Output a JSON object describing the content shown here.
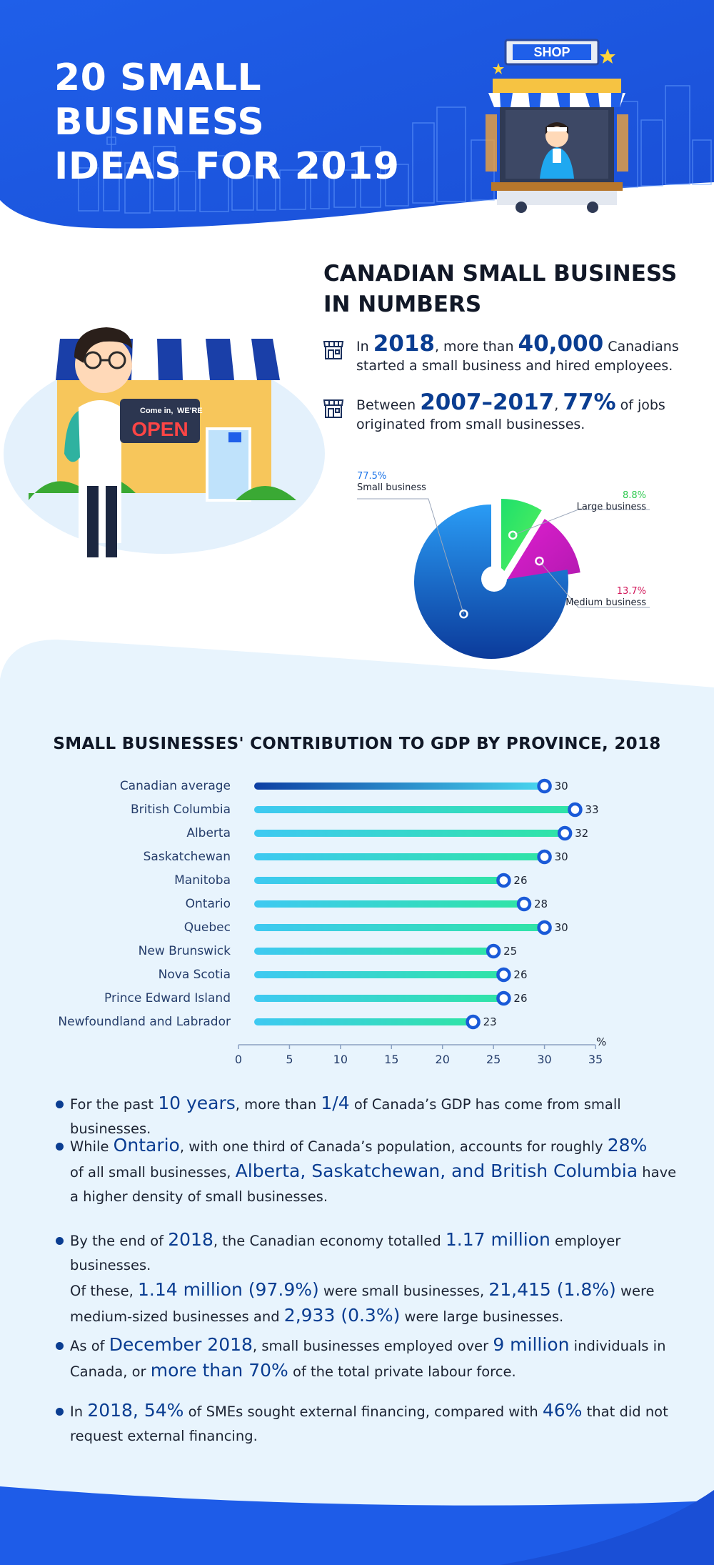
{
  "header": {
    "title_line1": "20 SMALL BUSINESS",
    "title_line2": "IDEAS FOR 2019",
    "shop_sign": "SHOP"
  },
  "colors": {
    "header_blue": "#1e5ce8",
    "navy": "#0a3d91",
    "small_business": "#1a73e8",
    "large_business": "#2ee85a",
    "medium_business": "#d21fc7",
    "bar_teal": "#2fe4a6",
    "bar_sky": "#3ec9f2",
    "light_bg": "#e7f3fd"
  },
  "stats": {
    "heading_line1": "CANADIAN SMALL BUSINESS",
    "heading_line2": "IN NUMBERS",
    "row1": {
      "icon": "storefront-icon",
      "pre": "In ",
      "year": "2018",
      "mid": ", more than ",
      "count": "40,000",
      "post": " Canadians",
      "line2": "started a small business and hired employees."
    },
    "row2": {
      "icon": "storefront-icon",
      "pre": "Between ",
      "period": "2007–2017",
      "mid": ", ",
      "pct": "77%",
      "post": " of jobs",
      "line2": "originated from small businesses."
    }
  },
  "sign": {
    "line1": "Come in,",
    "line1b": "WE'RE",
    "line2": "OPEN"
  },
  "pie": {
    "type": "pie",
    "slices": [
      {
        "name": "Small business",
        "pct_label": "77.5%",
        "value": 77.5,
        "color": "#1a73e8"
      },
      {
        "name": "Large business",
        "pct_label": "8.8%",
        "value": 8.8,
        "color": "#2ee85a"
      },
      {
        "name": "Medium business",
        "pct_label": "13.7%",
        "value": 13.7,
        "color": "#d21fc7"
      }
    ]
  },
  "chart_data": {
    "type": "bar",
    "title": "SMALL BUSINESSES' CONTRIBUTION TO GDP BY PROVINCE, 2018",
    "categories": [
      "Canadian average",
      "British Columbia",
      "Alberta",
      "Saskatchewan",
      "Manitoba",
      "Ontario",
      "Quebec",
      "New Brunswick",
      "Nova Scotia",
      "Prince Edward Island",
      "Newfoundland and Labrador"
    ],
    "values": [
      30,
      33,
      32,
      30,
      26,
      28,
      30,
      25,
      26,
      26,
      23
    ],
    "value_labels": [
      "30",
      "33",
      "32",
      "30",
      "26",
      "28",
      "30",
      "25",
      "26",
      "26",
      "23"
    ],
    "xlim": [
      0,
      35
    ],
    "xticks": [
      "0",
      "5",
      "10",
      "15",
      "20",
      "25",
      "30",
      "35"
    ],
    "unit_label": "%",
    "orientation": "horizontal"
  },
  "facts": {
    "f1": {
      "a": "For the past ",
      "b": "10 years",
      "c": ", more than ",
      "d": "1/4",
      "e": " of Canada’s GDP has come from small businesses."
    },
    "f2": {
      "a": "While ",
      "b": "Ontario",
      "c": ", with one third of Canada’s population, accounts for roughly ",
      "d": "28%",
      "e": "of all small businesses, ",
      "f": "Alberta, Saskatchewan, and British Columbia",
      "g": " have",
      "h": "a higher density of small businesses."
    },
    "f3": {
      "a": "By the end of ",
      "b": "2018",
      "c": ", the Canadian economy totalled ",
      "d": "1.17 million",
      "e": " employer businesses.",
      "f": "Of these, ",
      "g": "1.14 million (97.9%)",
      "h": " were small businesses, ",
      "i": "21,415 (1.8%)",
      "j": " were",
      "k": "medium-sized businesses and ",
      "l": "2,933 (0.3%)",
      "m": " were large businesses."
    },
    "f4": {
      "a": "As of ",
      "b": "December 2018",
      "c": ", small businesses employed over ",
      "d": "9 million",
      "e": " individuals in",
      "f": "Canada, or ",
      "g": "more than 70%",
      "h": " of the total private labour force."
    },
    "f5": {
      "a": "In ",
      "b": "2018, 54%",
      "c": " of SMEs sought external financing, compared with ",
      "d": "46%",
      "e": " that did not",
      "f": "request external financing."
    }
  }
}
